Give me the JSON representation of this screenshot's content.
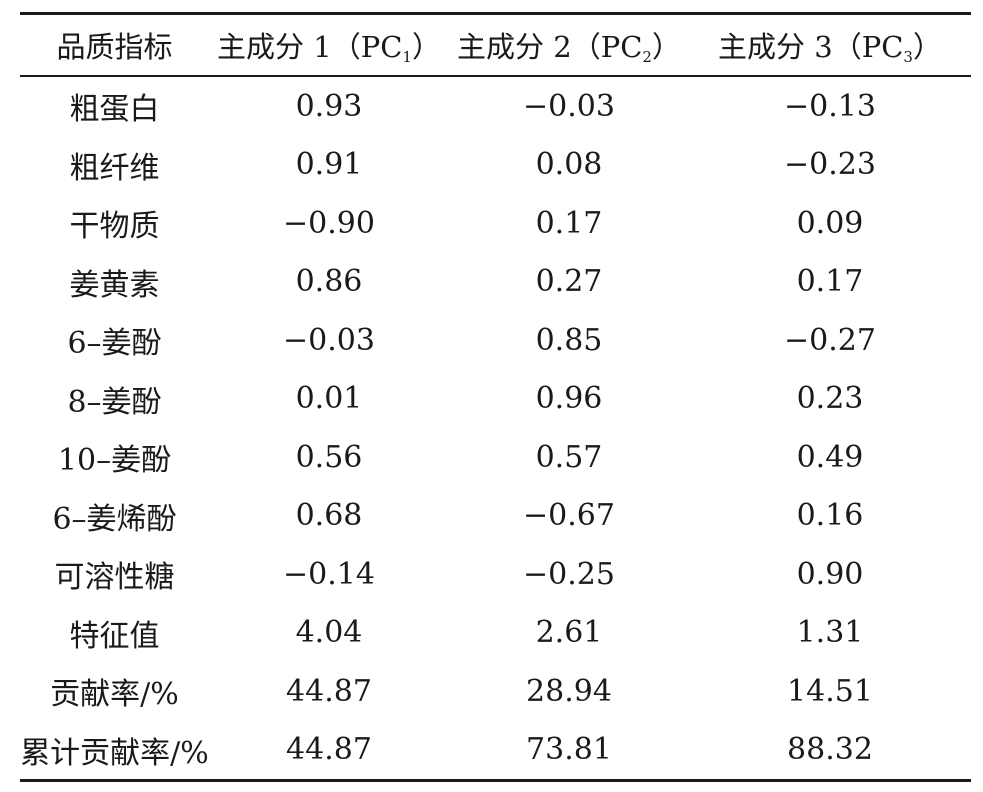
{
  "table": {
    "header": {
      "indicator": "品质指标",
      "pc1": {
        "prefix": "主成分 1（PC",
        "sub": "1",
        "suffix": "）"
      },
      "pc2": {
        "prefix": "主成分 2（PC",
        "sub": "2",
        "suffix": "）"
      },
      "pc3": {
        "prefix": "主成分 3（PC",
        "sub": "3",
        "suffix": "）"
      }
    },
    "rows": [
      {
        "label": "粗蛋白",
        "pc1": "0.93",
        "pc2": "−0.03",
        "pc3": "−0.13"
      },
      {
        "label": "粗纤维",
        "pc1": "0.91",
        "pc2": "0.08",
        "pc3": "−0.23"
      },
      {
        "label": "干物质",
        "pc1": "−0.90",
        "pc2": "0.17",
        "pc3": "0.09"
      },
      {
        "label": "姜黄素",
        "pc1": "0.86",
        "pc2": "0.27",
        "pc3": "0.17"
      },
      {
        "label": "6–姜酚",
        "pc1": "−0.03",
        "pc2": "0.85",
        "pc3": "−0.27"
      },
      {
        "label": "8–姜酚",
        "pc1": "0.01",
        "pc2": "0.96",
        "pc3": "0.23"
      },
      {
        "label": "10–姜酚",
        "pc1": "0.56",
        "pc2": "0.57",
        "pc3": "0.49"
      },
      {
        "label": "6–姜烯酚",
        "pc1": "0.68",
        "pc2": "−0.67",
        "pc3": "0.16"
      },
      {
        "label": "可溶性糖",
        "pc1": "−0.14",
        "pc2": "−0.25",
        "pc3": "0.90"
      },
      {
        "label": "特征值",
        "pc1": "4.04",
        "pc2": "2.61",
        "pc3": "1.31"
      },
      {
        "label": "贡献率/%",
        "pc1": "44.87",
        "pc2": "28.94",
        "pc3": "14.51"
      },
      {
        "label": "累计贡献率/%",
        "pc1": "44.87",
        "pc2": "73.81",
        "pc3": "88.32"
      }
    ]
  }
}
